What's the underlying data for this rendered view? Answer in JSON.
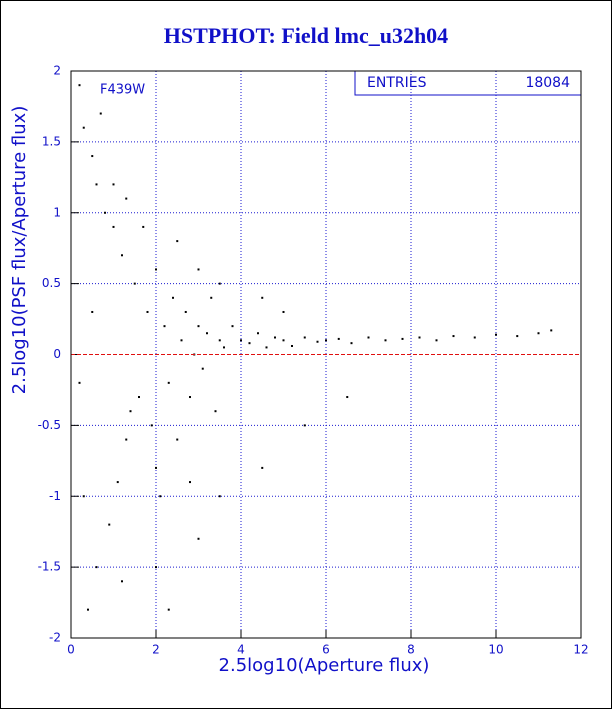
{
  "chart_data": {
    "type": "scatter",
    "title": "HSTPHOT: Field lmc_u32h04",
    "xlabel": "2.5log10(Aperture flux)",
    "ylabel": "2.5log10(PSF flux/Aperture flux)",
    "annotation": "F439W",
    "stats": {
      "label": "ENTRIES",
      "value": 18084
    },
    "xlim": [
      0,
      12
    ],
    "ylim": [
      -2,
      2
    ],
    "xticks": [
      0,
      2,
      4,
      6,
      8,
      10,
      12
    ],
    "yticks": [
      -2,
      -1.5,
      -1,
      -0.5,
      0,
      0.5,
      1,
      1.5,
      2
    ],
    "grid": true,
    "grid_color": "#1a1ad0",
    "reference_line": 0,
    "reference_color": "#e01010",
    "color": "#000000",
    "x": [
      0.2,
      0.3,
      0.5,
      0.6,
      0.8,
      1.0,
      1.2,
      0.4,
      0.6,
      0.9,
      1.1,
      1.3,
      1.4,
      0.7,
      1.5,
      1.6,
      1.8,
      1.9,
      2.0,
      2.1,
      2.2,
      2.3,
      2.4,
      2.5,
      2.6,
      2.7,
      2.8,
      2.9,
      3.0,
      3.1,
      3.2,
      3.3,
      3.4,
      3.5,
      3.6,
      3.8,
      4.0,
      4.2,
      4.4,
      4.6,
      4.8,
      5.0,
      5.2,
      5.5,
      5.8,
      6.0,
      6.3,
      6.6,
      7.0,
      7.4,
      7.8,
      8.2,
      8.6,
      9.0,
      9.5,
      10.0,
      10.5,
      11.0,
      11.3,
      2.0,
      2.3,
      3.0,
      4.5,
      5.5,
      6.5,
      3.5,
      1.0,
      1.3,
      1.7,
      2.5,
      3.0,
      3.5,
      4.5,
      5.0,
      2.0,
      2.8,
      0.2,
      0.5,
      1.2,
      0.3
    ],
    "y": [
      1.9,
      1.6,
      1.4,
      1.2,
      1.0,
      0.9,
      0.7,
      -1.8,
      -1.5,
      -1.2,
      -0.9,
      -0.6,
      -0.4,
      1.7,
      0.5,
      -0.3,
      0.3,
      -0.5,
      0.6,
      -1.0,
      0.2,
      -0.2,
      0.4,
      -0.6,
      0.1,
      0.3,
      -0.3,
      0.0,
      0.2,
      -0.1,
      0.15,
      0.4,
      -0.4,
      0.1,
      0.05,
      0.2,
      0.1,
      0.08,
      0.15,
      0.05,
      0.12,
      0.1,
      0.06,
      0.12,
      0.09,
      0.1,
      0.11,
      0.08,
      0.12,
      0.1,
      0.11,
      0.12,
      0.1,
      0.13,
      0.12,
      0.14,
      0.13,
      0.15,
      0.17,
      -1.5,
      -1.8,
      -1.3,
      -0.8,
      -0.5,
      -0.3,
      -1.0,
      1.2,
      1.1,
      0.9,
      0.8,
      0.6,
      0.5,
      0.4,
      0.3,
      -0.8,
      -0.9,
      -0.2,
      0.3,
      -1.6,
      -1.0
    ]
  }
}
